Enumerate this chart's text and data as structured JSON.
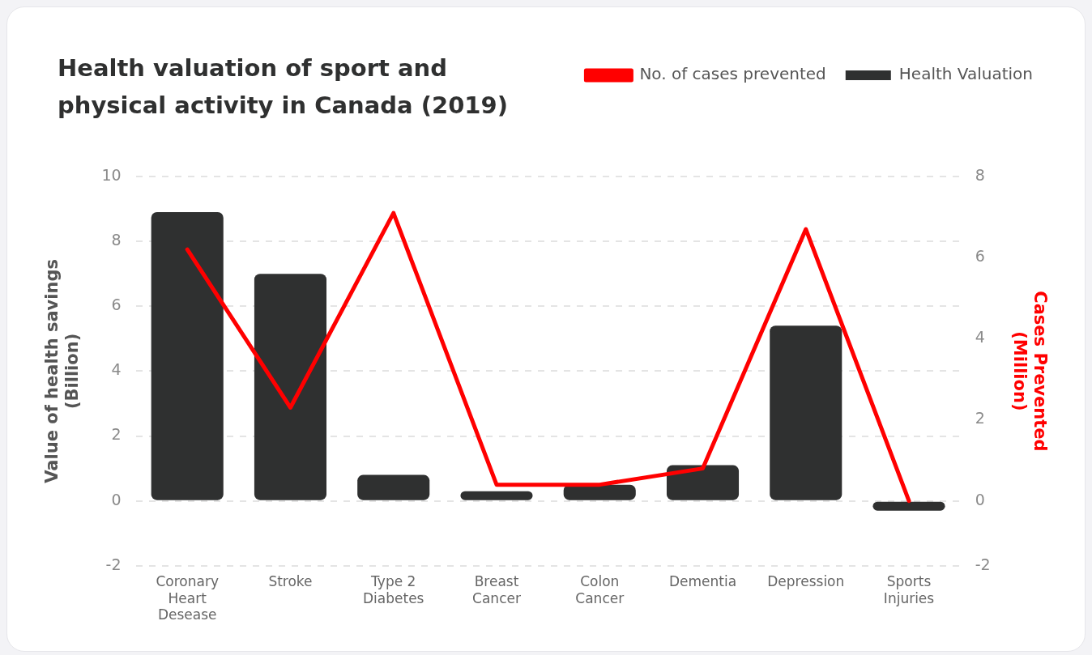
{
  "chart_data": {
    "type": "bar",
    "title": "Health valuation of sport and physical activity in Canada (2019)",
    "ylabel": "Value of health savings\n(Billion)",
    "y2label": "Cases Prevented\n(Million)",
    "categories": [
      "Coronary Heart Desease",
      "Stroke",
      "Type 2 Diabetes",
      "Breast Cancer",
      "Colon Cancer",
      "Dementia",
      "Depression",
      "Sports Injuries"
    ],
    "series": [
      {
        "name": "Health Valuation",
        "color": "#2f3030",
        "values": [
          8.9,
          7.0,
          0.8,
          0.3,
          0.5,
          1.1,
          5.4,
          -0.3
        ]
      },
      {
        "name": "No. of cases prevented",
        "type": "line",
        "axis": "y2",
        "color": "#ff0000",
        "values": [
          6.2,
          2.3,
          7.1,
          0.4,
          0.4,
          0.8,
          6.7,
          0
        ]
      }
    ],
    "ylim": [
      -2,
      10
    ],
    "yticks": [
      -2,
      0,
      2,
      4,
      6,
      8,
      10
    ],
    "y2lim": [
      -1.6,
      8
    ],
    "y2ticks": [
      {
        "value": -1.6,
        "label": "-2"
      },
      0,
      2,
      4,
      6,
      8
    ],
    "grid": "y",
    "legend": "top right",
    "marker": "none",
    "line_style": "solid"
  }
}
